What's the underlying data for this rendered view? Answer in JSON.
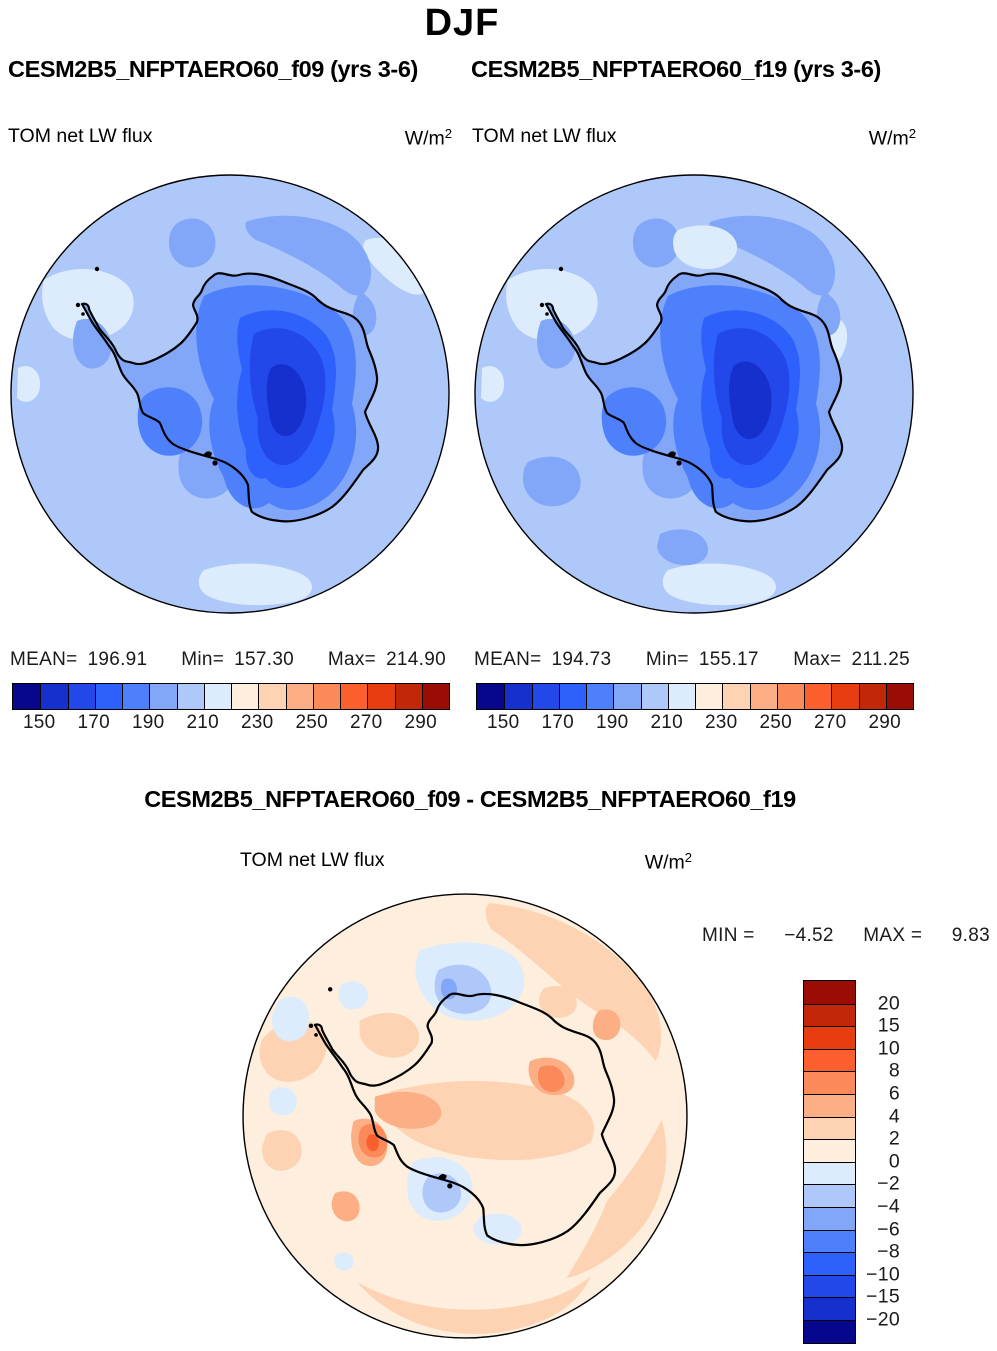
{
  "season": "DJF",
  "palette": [
    "#06078D",
    "#1630CE",
    "#2248EA",
    "#2E61FB",
    "#4F80FC",
    "#82A6F8",
    "#AEC8FA",
    "#DCECFC",
    "#FDEEDD",
    "#FDD3B3",
    "#FCAE85",
    "#FB8A5B",
    "#FA5F2D",
    "#E83C11",
    "#C32709",
    "#9A0D05"
  ],
  "panels": [
    {
      "title": "CESM2B5_NFPTAERO60_f09 (yrs 3-6)",
      "field_label": "TOM net LW flux",
      "units_base": "W/m",
      "units_exp": "2",
      "stats": {
        "mean_label": "MEAN=",
        "mean": "196.91",
        "min_label": "Min=",
        "min": "157.30",
        "max_label": "Max=",
        "max": "214.90"
      },
      "ticks": [
        "150",
        "170",
        "190",
        "210",
        "230",
        "250",
        "270",
        "290"
      ]
    },
    {
      "title": "CESM2B5_NFPTAERO60_f19 (yrs 3-6)",
      "field_label": "TOM net LW flux",
      "units_base": "W/m",
      "units_exp": "2",
      "stats": {
        "mean_label": "MEAN=",
        "mean": "194.73",
        "min_label": "Min=",
        "min": "155.17",
        "max_label": "Max=",
        "max": "211.25"
      },
      "ticks": [
        "150",
        "170",
        "190",
        "210",
        "230",
        "250",
        "270",
        "290"
      ]
    }
  ],
  "diff": {
    "title": "CESM2B5_NFPTAERO60_f09 - CESM2B5_NFPTAERO60_f19",
    "field_label": "TOM net LW flux",
    "units_base": "W/m",
    "units_exp": "2",
    "min_label": "MIN  =",
    "min_value": "−4.52",
    "max_label": "MAX  =",
    "max_value": "9.83",
    "tick_labels": [
      "20",
      "15",
      "10",
      "8",
      "6",
      "4",
      "2",
      "0",
      "−2",
      "−4",
      "−6",
      "−8",
      "−10",
      "−15",
      "−20"
    ]
  },
  "chart_data": [
    {
      "type": "heatmap",
      "subtype": "filled-contour polar stereographic map (Antarctica)",
      "season": "DJF",
      "title": "CESM2B5_NFPTAERO60_f09 (yrs 3-6)",
      "variable": "TOM net LW flux",
      "units": "W/m2",
      "stats": {
        "mean": 196.91,
        "min": 157.3,
        "max": 214.9
      },
      "contour_levels": [
        150,
        160,
        170,
        180,
        190,
        200,
        210,
        220,
        230,
        240,
        250,
        260,
        270,
        280,
        290
      ],
      "tick_labels": [
        150,
        170,
        190,
        210,
        230,
        250,
        270,
        290
      ],
      "palette": "16-step blue-to-red",
      "legend_position": "bottom",
      "pattern": "all values in blue range; darkest blue (150-170) over East Antarctic plateau, nested lighter blues outward; ocean mostly 200-210 with 210-220 pale patches near rim"
    },
    {
      "type": "heatmap",
      "subtype": "filled-contour polar stereographic map (Antarctica)",
      "season": "DJF",
      "title": "CESM2B5_NFPTAERO60_f19 (yrs 3-6)",
      "variable": "TOM net LW flux",
      "units": "W/m2",
      "stats": {
        "mean": 194.73,
        "min": 155.17,
        "max": 211.25
      },
      "contour_levels": [
        150,
        160,
        170,
        180,
        190,
        200,
        210,
        220,
        230,
        240,
        250,
        260,
        270,
        280,
        290
      ],
      "tick_labels": [
        150,
        170,
        190,
        210,
        230,
        250,
        270,
        290
      ],
      "palette": "16-step blue-to-red",
      "legend_position": "bottom",
      "pattern": "similar to f09 with larger dark-blue interior core and more 190-200 patches over ocean"
    },
    {
      "type": "heatmap",
      "subtype": "filled-contour difference map (Antarctica)",
      "season": "DJF",
      "title": "CESM2B5_NFPTAERO60_f09 - CESM2B5_NFPTAERO60_f19",
      "variable": "TOM net LW flux",
      "units": "W/m2",
      "stats": {
        "min": -4.52,
        "max": 9.83
      },
      "contour_levels": [
        -20,
        -15,
        -10,
        -8,
        -6,
        -4,
        -2,
        0,
        2,
        4,
        6,
        8,
        10,
        15,
        20
      ],
      "palette": "16-step blue-to-red, red positive at top of vertical bar",
      "legend_position": "right",
      "pattern": "mostly 0 to +4 pale orange; orange maxima (+6 to +10) near West Antarctic coast and a coastal spot at right; light blue (-2 to -6) patches north of top-center coast and over Ross Sea"
    }
  ]
}
